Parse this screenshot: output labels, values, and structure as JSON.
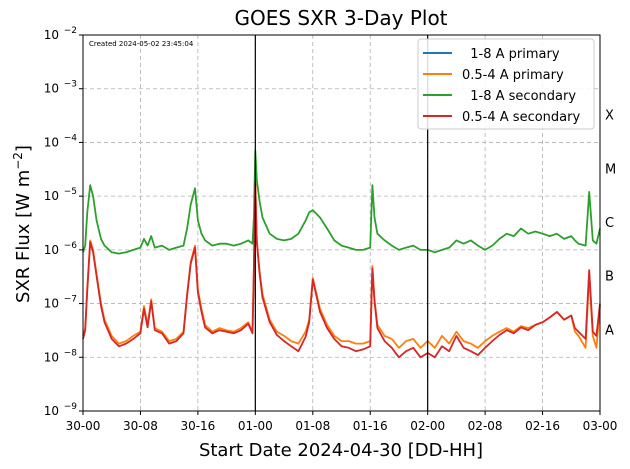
{
  "chart_data": {
    "type": "line",
    "title": "GOES SXR 3-Day Plot",
    "xlabel": "Start Date 2024-04-30 [DD-HH]",
    "ylabel_main": "SXR Flux [W m",
    "ylabel_sup": "−2",
    "ylabel_close": "]",
    "created_text": "Created 2024-05-02 23:45:04",
    "yscale": "log",
    "ylim": [
      1e-09,
      0.01
    ],
    "xlim_hours": [
      0,
      72
    ],
    "grid": true,
    "legend_position": "top-right",
    "x_ticks": [
      {
        "hour": 0,
        "label": "30-00"
      },
      {
        "hour": 8,
        "label": "30-08"
      },
      {
        "hour": 16,
        "label": "30-16"
      },
      {
        "hour": 24,
        "label": "01-00"
      },
      {
        "hour": 32,
        "label": "01-08"
      },
      {
        "hour": 40,
        "label": "01-16"
      },
      {
        "hour": 48,
        "label": "02-00"
      },
      {
        "hour": 56,
        "label": "02-08"
      },
      {
        "hour": 64,
        "label": "02-16"
      },
      {
        "hour": 72,
        "label": "03-00"
      }
    ],
    "y_ticks": [
      {
        "exp": -9,
        "label": "10",
        "sup": "−9"
      },
      {
        "exp": -8,
        "label": "10",
        "sup": "−8"
      },
      {
        "exp": -7,
        "label": "10",
        "sup": "−7"
      },
      {
        "exp": -6,
        "label": "10",
        "sup": "−6"
      },
      {
        "exp": -5,
        "label": "10",
        "sup": "−5"
      },
      {
        "exp": -4,
        "label": "10",
        "sup": "−4"
      },
      {
        "exp": -3,
        "label": "10",
        "sup": "−3"
      },
      {
        "exp": -2,
        "label": "10",
        "sup": "−2"
      }
    ],
    "flare_classes": [
      {
        "label": "A",
        "exp": -7.5
      },
      {
        "label": "B",
        "exp": -6.5
      },
      {
        "label": "C",
        "exp": -5.5
      },
      {
        "label": "M",
        "exp": -4.5
      },
      {
        "label": "X",
        "exp": -3.5
      }
    ],
    "day_markers_hours": [
      24,
      48
    ],
    "series": [
      {
        "name": "  1-8 A primary",
        "color": "#1f77b4",
        "x": [
          0,
          72
        ],
        "y": [
          null,
          null
        ]
      },
      {
        "name": "0.5-4 A primary",
        "color": "#ff7f0e",
        "x": [
          0,
          0.3,
          0.6,
          1.0,
          1.4,
          1.9,
          2.5,
          3.0,
          4.0,
          5.0,
          6.0,
          7.0,
          8.0,
          8.5,
          9.0,
          9.5,
          10.0,
          11.0,
          12.0,
          13.0,
          14.0,
          14.5,
          15.0,
          15.6,
          16.0,
          16.5,
          17.0,
          18.0,
          19.0,
          20.0,
          21.0,
          22.0,
          23.0,
          23.6,
          23.8,
          24.0,
          24.2,
          24.6,
          25.0,
          26.0,
          27.0,
          28.0,
          29.0,
          30.0,
          31.0,
          31.5,
          32.0,
          33.0,
          34.0,
          35.0,
          36.0,
          37.0,
          38.0,
          39.0,
          40.0,
          40.3,
          40.6,
          41.0,
          42.0,
          43.0,
          44.0,
          45.0,
          46.0,
          47.0,
          48.0,
          49.0,
          50.0,
          51.0,
          52.0,
          53.0,
          54.0,
          55.0,
          56.0,
          57.0,
          58.0,
          59.0,
          60.0,
          61.0,
          62.0,
          63.0,
          64.0,
          65.0,
          66.0,
          67.0,
          68.0,
          68.5,
          69.0,
          70.0,
          70.5,
          71.0,
          71.5,
          72.0
        ],
        "y": [
          2.5e-08,
          3.5e-08,
          2e-07,
          1.5e-06,
          1e-06,
          3.5e-07,
          1e-07,
          5e-08,
          2.5e-08,
          1.8e-08,
          2e-08,
          2.5e-08,
          3e-08,
          9e-08,
          4e-08,
          1.2e-07,
          3.5e-08,
          3e-08,
          2e-08,
          2.2e-08,
          3e-08,
          1.5e-07,
          6e-07,
          1.2e-06,
          1.8e-07,
          8e-08,
          4e-08,
          3e-08,
          3.5e-08,
          3.2e-08,
          3e-08,
          3.5e-08,
          4.5e-08,
          3e-08,
          5e-07,
          1.8e-05,
          1.5e-06,
          4e-07,
          1.5e-07,
          5e-08,
          3e-08,
          2.5e-08,
          2e-08,
          1.8e-08,
          3e-08,
          5e-08,
          3e-07,
          8e-08,
          4e-08,
          2.5e-08,
          2e-08,
          2e-08,
          1.8e-08,
          1.8e-08,
          2e-08,
          5e-07,
          1.2e-07,
          4e-08,
          2.5e-08,
          2.2e-08,
          1.5e-08,
          2e-08,
          2.2e-08,
          1.5e-08,
          2e-08,
          1.5e-08,
          2.5e-08,
          1.8e-08,
          3e-08,
          2e-08,
          1.8e-08,
          1.5e-08,
          2e-08,
          2.5e-08,
          3e-08,
          3.5e-08,
          3e-08,
          3.8e-08,
          3.5e-08,
          4e-08,
          4.5e-08,
          5.5e-08,
          7e-08,
          5e-08,
          6e-08,
          3e-08,
          2.5e-08,
          1.5e-08,
          3.5e-07,
          2.5e-08,
          1.5e-08,
          9e-08
        ]
      },
      {
        "name": "  1-8 A secondary",
        "color": "#2ca02c",
        "x": [
          0,
          0.3,
          0.6,
          1.0,
          1.4,
          1.9,
          2.5,
          3.0,
          4.0,
          5.0,
          6.0,
          7.0,
          8.0,
          8.5,
          9.0,
          9.5,
          10.0,
          11.0,
          12.0,
          13.0,
          14.0,
          14.5,
          15.0,
          15.6,
          16.0,
          16.5,
          17.0,
          18.0,
          19.0,
          20.0,
          21.0,
          22.0,
          23.0,
          23.6,
          23.8,
          24.0,
          24.2,
          24.6,
          25.0,
          26.0,
          27.0,
          28.0,
          29.0,
          30.0,
          31.0,
          31.5,
          32.0,
          33.0,
          34.0,
          35.0,
          36.0,
          37.0,
          38.0,
          39.0,
          40.0,
          40.3,
          40.6,
          41.0,
          42.0,
          43.0,
          44.0,
          45.0,
          46.0,
          47.0,
          48.0,
          49.0,
          50.0,
          51.0,
          52.0,
          53.0,
          54.0,
          55.0,
          56.0,
          57.0,
          58.0,
          59.0,
          60.0,
          61.0,
          62.0,
          63.0,
          64.0,
          65.0,
          66.0,
          67.0,
          68.0,
          68.5,
          69.0,
          70.0,
          70.5,
          71.0,
          71.5,
          72.0
        ],
        "y": [
          9e-07,
          1.2e-06,
          5e-06,
          1.6e-05,
          1e-05,
          3.5e-06,
          1.6e-06,
          1.2e-06,
          9e-07,
          8.5e-07,
          9e-07,
          1e-06,
          1.1e-06,
          1.6e-06,
          1.2e-06,
          1.8e-06,
          1.1e-06,
          1.2e-06,
          1e-06,
          1.1e-06,
          1.2e-06,
          2.5e-06,
          7e-06,
          1.4e-05,
          3.5e-06,
          2e-06,
          1.5e-06,
          1.2e-06,
          1.3e-06,
          1.3e-06,
          1.2e-06,
          1.3e-06,
          1.5e-06,
          1.3e-06,
          4e-06,
          7e-05,
          2e-05,
          8e-06,
          4e-06,
          2e-06,
          1.6e-06,
          1.5e-06,
          1.6e-06,
          2e-06,
          3.5e-06,
          5e-06,
          5.5e-06,
          4e-06,
          2.5e-06,
          1.5e-06,
          1.2e-06,
          1.1e-06,
          1e-06,
          1e-06,
          1.1e-06,
          1.6e-05,
          4e-06,
          2e-06,
          1.5e-06,
          1.2e-06,
          1e-06,
          1.1e-06,
          1.2e-06,
          1e-06,
          1e-06,
          9e-07,
          1e-06,
          1.1e-06,
          1.5e-06,
          1.3e-06,
          1.5e-06,
          1.2e-06,
          1e-06,
          1.2e-06,
          1.6e-06,
          2e-06,
          1.8e-06,
          2.5e-06,
          2e-06,
          2.2e-06,
          2e-06,
          1.8e-06,
          2e-06,
          1.6e-06,
          1.8e-06,
          1.5e-06,
          1.3e-06,
          1.2e-06,
          1.2e-05,
          1.5e-06,
          1.3e-06,
          2.5e-06
        ]
      },
      {
        "name": "0.5-4 A secondary",
        "color": "#d62728",
        "x": [
          0,
          0.3,
          0.6,
          1.0,
          1.4,
          1.9,
          2.5,
          3.0,
          4.0,
          5.0,
          6.0,
          7.0,
          8.0,
          8.5,
          9.0,
          9.5,
          10.0,
          11.0,
          12.0,
          13.0,
          14.0,
          14.5,
          15.0,
          15.6,
          16.0,
          16.5,
          17.0,
          18.0,
          19.0,
          20.0,
          21.0,
          22.0,
          23.0,
          23.6,
          23.8,
          24.0,
          24.2,
          24.6,
          25.0,
          26.0,
          27.0,
          28.0,
          29.0,
          30.0,
          31.0,
          31.5,
          32.0,
          33.0,
          34.0,
          35.0,
          36.0,
          37.0,
          38.0,
          39.0,
          40.0,
          40.3,
          40.6,
          41.0,
          42.0,
          43.0,
          44.0,
          45.0,
          46.0,
          47.0,
          48.0,
          49.0,
          50.0,
          51.0,
          52.0,
          53.0,
          54.0,
          55.0,
          56.0,
          57.0,
          58.0,
          59.0,
          60.0,
          61.0,
          62.0,
          63.0,
          64.0,
          65.0,
          66.0,
          67.0,
          68.0,
          68.5,
          69.0,
          70.0,
          70.5,
          71.0,
          71.5,
          72.0
        ],
        "y": [
          2.2e-08,
          3.2e-08,
          1.8e-07,
          1.4e-06,
          9e-07,
          3.2e-07,
          9e-08,
          4.5e-08,
          2.2e-08,
          1.6e-08,
          1.8e-08,
          2.2e-08,
          2.8e-08,
          8e-08,
          3.6e-08,
          1.1e-07,
          3.2e-08,
          2.8e-08,
          1.8e-08,
          2e-08,
          2.8e-08,
          1.4e-07,
          5.5e-07,
          1.1e-06,
          1.6e-07,
          7e-08,
          3.6e-08,
          2.8e-08,
          3.2e-08,
          3e-08,
          2.8e-08,
          3.2e-08,
          4.2e-08,
          2.8e-08,
          4.5e-07,
          1.7e-05,
          1.4e-06,
          3.6e-07,
          1.3e-07,
          4.5e-08,
          2.6e-08,
          2e-08,
          1.6e-08,
          1.3e-08,
          2.4e-08,
          4.5e-08,
          2.8e-07,
          7e-08,
          3.5e-08,
          2.2e-08,
          1.6e-08,
          1.5e-08,
          1.3e-08,
          1.4e-08,
          1.6e-08,
          4.5e-07,
          1.1e-07,
          3.5e-08,
          2e-08,
          1.5e-08,
          1e-08,
          1.3e-08,
          1.5e-08,
          1e-08,
          1.2e-08,
          1e-08,
          1.6e-08,
          1.3e-08,
          2.5e-08,
          1.5e-08,
          1.3e-08,
          1.1e-08,
          1.5e-08,
          2e-08,
          2.6e-08,
          3.2e-08,
          2.8e-08,
          3.6e-08,
          3.2e-08,
          4e-08,
          4.5e-08,
          5.5e-08,
          7e-08,
          5e-08,
          6e-08,
          3.5e-08,
          3e-08,
          2.2e-08,
          4.2e-07,
          3e-08,
          2.5e-08,
          1e-07
        ]
      }
    ]
  }
}
